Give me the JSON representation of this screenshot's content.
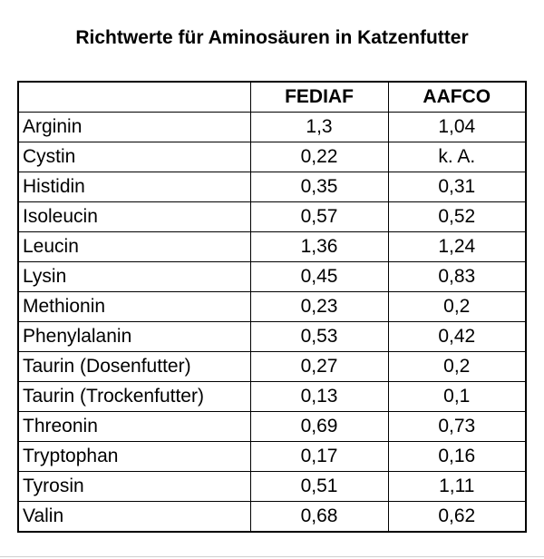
{
  "title": "Richtwerte für Aminosäuren in Katzenfutter",
  "table": {
    "headers": [
      "",
      "FEDIAF",
      "AAFCO"
    ],
    "rows": [
      {
        "name": "Arginin",
        "fediaf": "1,3",
        "aafco": "1,04"
      },
      {
        "name": "Cystin",
        "fediaf": "0,22",
        "aafco": "k. A."
      },
      {
        "name": "Histidin",
        "fediaf": "0,35",
        "aafco": "0,31"
      },
      {
        "name": "Isoleucin",
        "fediaf": "0,57",
        "aafco": "0,52"
      },
      {
        "name": "Leucin",
        "fediaf": "1,36",
        "aafco": "1,24"
      },
      {
        "name": "Lysin",
        "fediaf": "0,45",
        "aafco": "0,83"
      },
      {
        "name": "Methionin",
        "fediaf": "0,23",
        "aafco": "0,2"
      },
      {
        "name": "Phenylalanin",
        "fediaf": "0,53",
        "aafco": "0,42"
      },
      {
        "name": "Taurin (Dosenfutter)",
        "fediaf": "0,27",
        "aafco": "0,2"
      },
      {
        "name": "Taurin (Trockenfutter)",
        "fediaf": "0,13",
        "aafco": "0,1"
      },
      {
        "name": "Threonin",
        "fediaf": "0,69",
        "aafco": "0,73"
      },
      {
        "name": "Tryptophan",
        "fediaf": "0,17",
        "aafco": "0,16"
      },
      {
        "name": "Tyrosin",
        "fediaf": "0,51",
        "aafco": "1,11"
      },
      {
        "name": "Valin",
        "fediaf": "0,68",
        "aafco": "0,62"
      }
    ]
  }
}
